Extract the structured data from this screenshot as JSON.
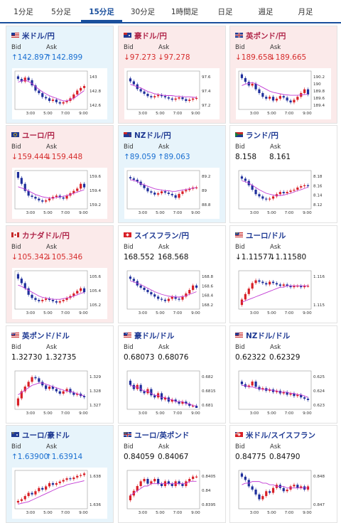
{
  "tabs": [
    {
      "label": "1分足",
      "active": false
    },
    {
      "label": "5分足",
      "active": false
    },
    {
      "label": "15分足",
      "active": true
    },
    {
      "label": "30分足",
      "active": false
    },
    {
      "label": "1時間足",
      "active": false
    },
    {
      "label": "日足",
      "active": false
    },
    {
      "label": "週足",
      "active": false
    },
    {
      "label": "月足",
      "active": false
    }
  ],
  "labels": {
    "bid": "Bid",
    "ask": "Ask"
  },
  "colors": {
    "up_arrow": "#1a6fd1",
    "down_arrow": "#d62d2d",
    "candle_up": "#d81f26",
    "candle_down": "#1f2f9c",
    "ma_line": "#c23bd4"
  },
  "x_ticks": [
    "3:00",
    "5:00",
    "7:00",
    "9:00"
  ],
  "cards": [
    {
      "pair": "米ドル/円",
      "flag": "us",
      "trend": "up",
      "bid": "↑142.897",
      "ask": "↑142.899",
      "y_ticks": [
        "143",
        "142.8",
        "142.6"
      ],
      "chart_data": {
        "type": "candlestick",
        "ylim": [
          142.55,
          143.1
        ],
        "ma": [
          142.95,
          142.97,
          142.98,
          142.96,
          142.93,
          142.88,
          142.84,
          142.8,
          142.77,
          142.74,
          142.72,
          142.7,
          142.68,
          142.66,
          142.66,
          142.68,
          142.7,
          142.74,
          142.78,
          142.82
        ],
        "close": [
          143.0,
          142.96,
          143.02,
          142.98,
          142.9,
          142.82,
          142.78,
          142.72,
          142.7,
          142.66,
          142.68,
          142.64,
          142.62,
          142.64,
          142.66,
          142.7,
          142.76,
          142.82,
          142.86,
          142.89
        ]
      }
    },
    {
      "pair": "豪ドル/円",
      "flag": "au",
      "trend": "down",
      "bid": "↓97.273",
      "ask": "↓97.278",
      "y_ticks": [
        "97.6",
        "97.4",
        "97.2"
      ],
      "chart_data": {
        "type": "candlestick",
        "ylim": [
          97.1,
          97.7
        ],
        "ma": [
          97.5,
          97.48,
          97.46,
          97.44,
          97.41,
          97.38,
          97.36,
          97.34,
          97.33,
          97.32,
          97.31,
          97.31,
          97.31,
          97.3,
          97.3,
          97.29,
          97.29,
          97.29,
          97.28,
          97.28
        ],
        "close": [
          97.55,
          97.5,
          97.42,
          97.38,
          97.34,
          97.3,
          97.28,
          97.3,
          97.32,
          97.3,
          97.28,
          97.26,
          97.24,
          97.26,
          97.28,
          97.25,
          97.22,
          97.24,
          97.26,
          97.27
        ]
      }
    },
    {
      "pair": "英ポンド/円",
      "flag": "gb",
      "trend": "down",
      "bid": "↓189.658",
      "ask": "↓189.665",
      "y_ticks": [
        "190.2",
        "190",
        "189.8",
        "189.6",
        "189.4"
      ],
      "chart_data": {
        "type": "candlestick",
        "ylim": [
          189.3,
          190.25
        ],
        "ma": [
          189.9,
          189.94,
          189.96,
          189.98,
          189.95,
          189.9,
          189.85,
          189.8,
          189.75,
          189.72,
          189.7,
          189.68,
          189.66,
          189.65,
          189.64,
          189.64,
          189.64,
          189.65,
          189.66,
          189.67
        ],
        "close": [
          190.1,
          190.0,
          189.9,
          189.95,
          189.8,
          189.7,
          189.6,
          189.55,
          189.6,
          189.5,
          189.55,
          189.62,
          189.58,
          189.5,
          189.45,
          189.52,
          189.6,
          189.7,
          189.8,
          189.66
        ]
      }
    },
    {
      "pair": "ユーロ/円",
      "flag": "eu",
      "trend": "down",
      "bid": "↓159.444",
      "ask": "↓159.448",
      "y_ticks": [
        "159.6",
        "159.4",
        "159.2"
      ],
      "chart_data": {
        "type": "candlestick",
        "ylim": [
          159.1,
          159.7
        ],
        "ma": [
          159.45,
          159.43,
          159.41,
          159.38,
          159.35,
          159.32,
          159.3,
          159.28,
          159.27,
          159.26,
          159.26,
          159.27,
          159.28,
          159.29,
          159.3,
          159.32,
          159.34,
          159.36,
          159.38,
          159.4
        ],
        "close": [
          159.6,
          159.5,
          159.38,
          159.3,
          159.28,
          159.25,
          159.22,
          159.2,
          159.22,
          159.25,
          159.28,
          159.3,
          159.27,
          159.25,
          159.3,
          159.34,
          159.38,
          159.42,
          159.5,
          159.44
        ]
      }
    },
    {
      "pair": "NZドル/円",
      "flag": "nz",
      "trend": "up",
      "bid": "↑89.059",
      "ask": "↑89.063",
      "y_ticks": [
        "89.2",
        "89",
        "88.8"
      ],
      "chart_data": {
        "type": "candlestick",
        "ylim": [
          88.75,
          89.3
        ],
        "ma": [
          89.18,
          89.17,
          89.15,
          89.12,
          89.1,
          89.08,
          89.06,
          89.04,
          89.03,
          89.02,
          89.01,
          89.01,
          89.0,
          89.0,
          89.01,
          89.02,
          89.03,
          89.04,
          89.05,
          89.06
        ],
        "close": [
          89.2,
          89.18,
          89.15,
          89.1,
          89.05,
          89.0,
          88.98,
          88.95,
          88.97,
          89.0,
          88.98,
          88.96,
          88.94,
          88.9,
          88.96,
          89.0,
          89.02,
          89.04,
          89.06,
          89.06
        ]
      }
    },
    {
      "pair": "ランド/円",
      "flag": "za",
      "trend": "flat",
      "bid": "8.158",
      "ask": "8.161",
      "y_ticks": [
        "8.18",
        "8.16",
        "8.14",
        "8.12"
      ],
      "chart_data": {
        "type": "candlestick",
        "ylim": [
          8.11,
          8.19
        ],
        "ma": [
          8.17,
          8.168,
          8.165,
          8.16,
          8.155,
          8.15,
          8.146,
          8.142,
          8.14,
          8.138,
          8.137,
          8.137,
          8.138,
          8.14,
          8.142,
          8.145,
          8.148,
          8.15,
          8.153,
          8.156
        ],
        "close": [
          8.175,
          8.17,
          8.16,
          8.15,
          8.14,
          8.135,
          8.13,
          8.128,
          8.13,
          8.135,
          8.14,
          8.145,
          8.142,
          8.145,
          8.148,
          8.15,
          8.155,
          8.158,
          8.16,
          8.158
        ]
      }
    },
    {
      "pair": "カナダドル/円",
      "flag": "ca",
      "trend": "down",
      "bid": "↓105.342",
      "ask": "↓105.346",
      "y_ticks": [
        "105.6",
        "105.4",
        "105.2"
      ],
      "chart_data": {
        "type": "candlestick",
        "ylim": [
          105.1,
          105.65
        ],
        "ma": [
          105.45,
          105.43,
          105.4,
          105.37,
          105.34,
          105.31,
          105.28,
          105.26,
          105.25,
          105.24,
          105.23,
          105.23,
          105.23,
          105.24,
          105.25,
          105.26,
          105.28,
          105.3,
          105.32,
          105.34
        ],
        "close": [
          105.55,
          105.48,
          105.4,
          105.3,
          105.25,
          105.22,
          105.2,
          105.22,
          105.24,
          105.22,
          105.2,
          105.18,
          105.2,
          105.22,
          105.25,
          105.28,
          105.32,
          105.36,
          105.4,
          105.34
        ]
      }
    },
    {
      "pair": "スイスフラン/円",
      "flag": "ch",
      "trend": "flat",
      "bid": "168.552",
      "ask": "168.568",
      "y_ticks": [
        "168.8",
        "168.6",
        "168.4",
        "168.2"
      ],
      "chart_data": {
        "type": "candlestick",
        "ylim": [
          168.1,
          168.9
        ],
        "ma": [
          168.7,
          168.68,
          168.65,
          168.62,
          168.58,
          168.54,
          168.5,
          168.46,
          168.43,
          168.4,
          168.38,
          168.36,
          168.35,
          168.34,
          168.34,
          168.35,
          168.37,
          168.4,
          168.43,
          168.46
        ],
        "close": [
          168.75,
          168.7,
          168.6,
          168.55,
          168.5,
          168.45,
          168.4,
          168.35,
          168.3,
          168.28,
          168.25,
          168.3,
          168.35,
          168.3,
          168.28,
          168.35,
          168.42,
          168.5,
          168.6,
          168.55
        ]
      }
    },
    {
      "pair": "ユーロ/ドル",
      "flag": "eu-us",
      "trend": "flat",
      "bid": "↓1.11577",
      "ask": "↓1.11580",
      "y_ticks": [
        "1.116",
        "1.115"
      ],
      "chart_data": {
        "type": "candlestick",
        "ylim": [
          1.1142,
          1.1168
        ],
        "ma": [
          1.1146,
          1.1147,
          1.1148,
          1.1149,
          1.115,
          1.1151,
          1.1152,
          1.1153,
          1.1154,
          1.1155,
          1.1156,
          1.1157,
          1.1157,
          1.1158,
          1.1158,
          1.1158,
          1.1158,
          1.1158,
          1.1158,
          1.1158
        ],
        "close": [
          1.1148,
          1.1152,
          1.1156,
          1.116,
          1.1162,
          1.1161,
          1.116,
          1.1159,
          1.1161,
          1.116,
          1.1159,
          1.1158,
          1.1159,
          1.1158,
          1.1157,
          1.1158,
          1.1158,
          1.1157,
          1.1158,
          1.1158
        ]
      }
    },
    {
      "pair": "英ポンド/ドル",
      "flag": "gb-us",
      "trend": "flat",
      "bid": "1.32730",
      "ask": "1.32735",
      "y_ticks": [
        "1.329",
        "1.328",
        "1.327"
      ],
      "chart_data": {
        "type": "candlestick",
        "ylim": [
          1.3264,
          1.3294
        ],
        "ma": [
          1.3275,
          1.3277,
          1.3279,
          1.3281,
          1.3283,
          1.3284,
          1.3285,
          1.3285,
          1.3284,
          1.3283,
          1.3282,
          1.3281,
          1.328,
          1.3279,
          1.3278,
          1.3278,
          1.3277,
          1.3276,
          1.3275,
          1.3274
        ],
        "close": [
          1.3272,
          1.3278,
          1.3282,
          1.3286,
          1.329,
          1.3289,
          1.3286,
          1.3283,
          1.328,
          1.3282,
          1.328,
          1.3278,
          1.3276,
          1.3278,
          1.328,
          1.3277,
          1.3275,
          1.3276,
          1.3274,
          1.3273
        ]
      }
    },
    {
      "pair": "豪ドル/ドル",
      "flag": "au-us",
      "trend": "flat",
      "bid": "0.68073",
      "ask": "0.68076",
      "y_ticks": [
        "0.682",
        "0.6815",
        "0.681"
      ],
      "chart_data": {
        "type": "candlestick",
        "ylim": [
          0.6807,
          0.6824
        ],
        "ma": [
          0.6818,
          0.6817,
          0.6817,
          0.6816,
          0.6815,
          0.6815,
          0.6814,
          0.6813,
          0.6813,
          0.6812,
          0.6812,
          0.6811,
          0.6811,
          0.681,
          0.681,
          0.681,
          0.6809,
          0.6809,
          0.6808,
          0.6808
        ],
        "close": [
          0.6818,
          0.6816,
          0.6818,
          0.6815,
          0.6814,
          0.6816,
          0.6813,
          0.6812,
          0.6814,
          0.6811,
          0.6812,
          0.681,
          0.6811,
          0.681,
          0.6809,
          0.681,
          0.6809,
          0.6808,
          0.6808,
          0.6807
        ]
      }
    },
    {
      "pair": "NZドル/ドル",
      "flag": "nz-us",
      "trend": "flat",
      "bid": "0.62322",
      "ask": "0.62329",
      "y_ticks": [
        "0.625",
        "0.624",
        "0.623"
      ],
      "chart_data": {
        "type": "candlestick",
        "ylim": [
          0.6226,
          0.6253
        ],
        "ma": [
          0.6243,
          0.6243,
          0.6242,
          0.6242,
          0.6241,
          0.6241,
          0.624,
          0.624,
          0.624,
          0.6239,
          0.6239,
          0.6238,
          0.6238,
          0.6238,
          0.6237,
          0.6237,
          0.6236,
          0.6236,
          0.6235,
          0.6234
        ],
        "close": [
          0.6244,
          0.6242,
          0.6243,
          0.6246,
          0.6242,
          0.624,
          0.6241,
          0.6239,
          0.624,
          0.6238,
          0.6239,
          0.6237,
          0.6238,
          0.6236,
          0.6237,
          0.6235,
          0.6236,
          0.6234,
          0.6233,
          0.6232
        ]
      }
    },
    {
      "pair": "ユーロ/豪ドル",
      "flag": "eu-au",
      "trend": "up",
      "bid": "↑1.63900",
      "ask": "↑1.63914",
      "y_ticks": [
        "1.638",
        "1.636"
      ],
      "chart_data": {
        "type": "candlestick",
        "ylim": [
          1.6348,
          1.6392
        ],
        "ma": [
          1.6352,
          1.6353,
          1.6354,
          1.6355,
          1.6357,
          1.6359,
          1.6361,
          1.6363,
          1.6365,
          1.6367,
          1.6369,
          1.6371,
          1.6373,
          1.6374,
          1.6376,
          1.6377,
          1.6378,
          1.6379,
          1.638,
          1.6381
        ],
        "close": [
          1.6356,
          1.6358,
          1.6362,
          1.6366,
          1.6364,
          1.6368,
          1.6372,
          1.637,
          1.6374,
          1.6378,
          1.6376,
          1.6378,
          1.638,
          1.6382,
          1.6384,
          1.6383,
          1.6385,
          1.6387,
          1.6388,
          1.639
        ]
      }
    },
    {
      "pair": "ユーロ/英ポンド",
      "flag": "eu-gb",
      "trend": "flat",
      "bid": "0.84059",
      "ask": "0.84067",
      "y_ticks": [
        "0.8405",
        "0.84",
        "0.8395"
      ],
      "chart_data": {
        "type": "candlestick",
        "ylim": [
          0.8393,
          0.8408
        ],
        "ma": [
          0.8398,
          0.8399,
          0.84,
          0.8401,
          0.8402,
          0.8402,
          0.8403,
          0.8403,
          0.8403,
          0.8403,
          0.8403,
          0.8403,
          0.8403,
          0.8403,
          0.8403,
          0.8403,
          0.8403,
          0.8404,
          0.8404,
          0.8404
        ],
        "close": [
          0.8398,
          0.84,
          0.8402,
          0.8404,
          0.8405,
          0.8403,
          0.8404,
          0.8405,
          0.8403,
          0.8402,
          0.8404,
          0.8403,
          0.8402,
          0.8404,
          0.8403,
          0.8402,
          0.8404,
          0.8405,
          0.8406,
          0.8406
        ]
      }
    },
    {
      "pair": "米ドル/スイスフラン",
      "flag": "us-ch",
      "trend": "flat",
      "bid": "0.84775",
      "ask": "0.84790",
      "y_ticks": [
        "0.848",
        "0.847"
      ],
      "chart_data": {
        "type": "candlestick",
        "ylim": [
          0.8465,
          0.8487
        ],
        "ma": [
          0.8479,
          0.848,
          0.848,
          0.8481,
          0.8481,
          0.8481,
          0.848,
          0.848,
          0.8479,
          0.8479,
          0.8478,
          0.8478,
          0.8478,
          0.8477,
          0.8477,
          0.8477,
          0.8477,
          0.8477,
          0.8477,
          0.8477
        ],
        "close": [
          0.8484,
          0.8482,
          0.8478,
          0.8476,
          0.8473,
          0.847,
          0.8472,
          0.8475,
          0.8474,
          0.8477,
          0.8479,
          0.8477,
          0.8475,
          0.8476,
          0.8478,
          0.8479,
          0.8477,
          0.8478,
          0.8476,
          0.8478
        ]
      }
    }
  ]
}
